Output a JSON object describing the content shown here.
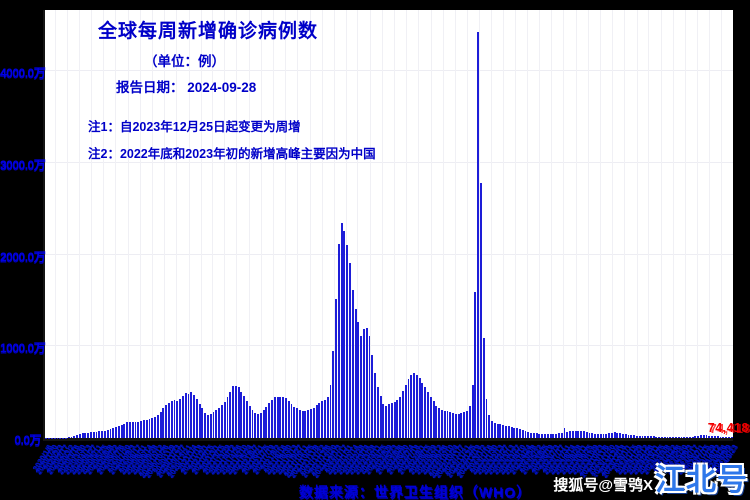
{
  "header": {
    "title": "全球每周新增确诊病例数",
    "subtitle": "（单位：例）",
    "report_date": "报告日期： 2024-09-28",
    "note1": "注1：自2023年12月25日起变更为周增",
    "note2": "注2：2022年底和2023年初的新增高峰主要因为中国"
  },
  "footer": {
    "source": "数据来源：世界卫生组织（WHO）"
  },
  "watermark": {
    "account": "搜狐号@雪鸮X",
    "big": "江北号"
  },
  "chart_data": {
    "type": "bar",
    "title": "全球每周新增确诊病例数",
    "unit_note": "values in 万 (10,000) cases per week",
    "x_freq": "weekly",
    "x_start": "2020/1/6",
    "x_end": "2024/9/23",
    "x_tick_style": "every week date label, rotated, heavily overlapping",
    "ylim": [
      0,
      4666
    ],
    "grid": true,
    "legend": false,
    "bar_color": "#1d1dd8",
    "last_value_label": "74,418",
    "y_ticks": [
      {
        "value": 4000,
        "label": "4000.0万"
      },
      {
        "value": 3000,
        "label": "3000.0万"
      },
      {
        "value": 2000,
        "label": "2000.0万"
      },
      {
        "value": 1000,
        "label": "1000.0万"
      },
      {
        "value": 0,
        "label": "0.0万"
      }
    ],
    "values_wan": [
      0.5,
      1,
      2,
      3.5,
      5,
      4.5,
      4,
      3.8,
      6,
      10,
      18,
      30,
      45,
      55,
      58,
      60,
      62,
      65,
      68,
      72,
      76,
      80,
      88,
      95,
      105,
      115,
      128,
      142,
      158,
      170,
      178,
      180,
      176,
      178,
      185,
      192,
      200,
      207,
      213,
      225,
      248,
      285,
      325,
      355,
      385,
      405,
      412,
      405,
      430,
      462,
      490,
      478,
      500,
      472,
      425,
      372,
      322,
      275,
      252,
      262,
      282,
      305,
      332,
      362,
      395,
      445,
      505,
      562,
      572,
      552,
      505,
      455,
      402,
      352,
      305,
      272,
      262,
      272,
      302,
      342,
      382,
      412,
      442,
      452,
      452,
      442,
      432,
      402,
      372,
      342,
      322,
      302,
      292,
      292,
      302,
      312,
      332,
      362,
      382,
      402,
      412,
      452,
      582,
      952,
      1520,
      2120,
      2350,
      2260,
      2110,
      1910,
      1610,
      1410,
      1260,
      1110,
      1190,
      1200,
      1110,
      910,
      710,
      560,
      455,
      375,
      352,
      372,
      382,
      392,
      412,
      452,
      512,
      582,
      642,
      692,
      712,
      692,
      652,
      602,
      552,
      502,
      452,
      402,
      352,
      322,
      302,
      300,
      290,
      282,
      272,
      262,
      262,
      272,
      282,
      292,
      352,
      582,
      1590,
      4430,
      2780,
      1090,
      430,
      250,
      185,
      168,
      158,
      150,
      142,
      135,
      128,
      120,
      112,
      105,
      95,
      85,
      75,
      68,
      60,
      55,
      50,
      47,
      45,
      42,
      40,
      40,
      42,
      45,
      50,
      58,
      105,
      70,
      72,
      75,
      78,
      80,
      78,
      72,
      65,
      58,
      52,
      48,
      45,
      42,
      40,
      45,
      52,
      58,
      62,
      60,
      55,
      48,
      42,
      38,
      34,
      30,
      27,
      25,
      23,
      21,
      20,
      18,
      17,
      16,
      15,
      14,
      13,
      12,
      12,
      11,
      11,
      10,
      10,
      10,
      11,
      13,
      16,
      20,
      24,
      28,
      30,
      29,
      27,
      24,
      21,
      18,
      15,
      12,
      10,
      8.5,
      7.4
    ]
  }
}
